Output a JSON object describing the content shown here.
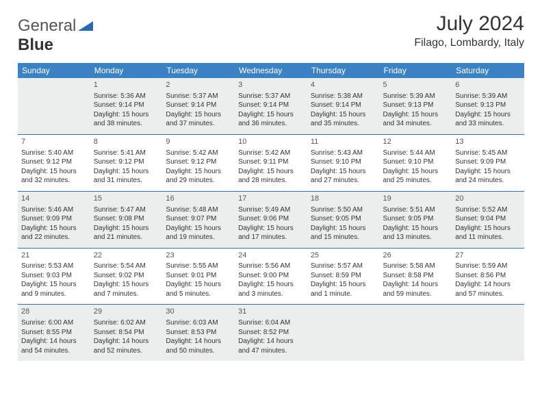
{
  "brand": {
    "part1": "General",
    "part2": "Blue"
  },
  "title": {
    "month": "July 2024",
    "location": "Filago, Lombardy, Italy"
  },
  "colors": {
    "header_bg": "#3b82c4",
    "header_text": "#ffffff",
    "shaded_row": "#eceded",
    "row_separator": "#3b6fa0",
    "logo_shape": "#2a6bb0",
    "text": "#333333"
  },
  "weekdays": [
    "Sunday",
    "Monday",
    "Tuesday",
    "Wednesday",
    "Thursday",
    "Friday",
    "Saturday"
  ],
  "weeks": [
    {
      "shaded": true,
      "days": [
        null,
        {
          "n": "1",
          "sr": "Sunrise: 5:36 AM",
          "ss": "Sunset: 9:14 PM",
          "d1": "Daylight: 15 hours",
          "d2": "and 38 minutes."
        },
        {
          "n": "2",
          "sr": "Sunrise: 5:37 AM",
          "ss": "Sunset: 9:14 PM",
          "d1": "Daylight: 15 hours",
          "d2": "and 37 minutes."
        },
        {
          "n": "3",
          "sr": "Sunrise: 5:37 AM",
          "ss": "Sunset: 9:14 PM",
          "d1": "Daylight: 15 hours",
          "d2": "and 36 minutes."
        },
        {
          "n": "4",
          "sr": "Sunrise: 5:38 AM",
          "ss": "Sunset: 9:14 PM",
          "d1": "Daylight: 15 hours",
          "d2": "and 35 minutes."
        },
        {
          "n": "5",
          "sr": "Sunrise: 5:39 AM",
          "ss": "Sunset: 9:13 PM",
          "d1": "Daylight: 15 hours",
          "d2": "and 34 minutes."
        },
        {
          "n": "6",
          "sr": "Sunrise: 5:39 AM",
          "ss": "Sunset: 9:13 PM",
          "d1": "Daylight: 15 hours",
          "d2": "and 33 minutes."
        }
      ]
    },
    {
      "shaded": false,
      "days": [
        {
          "n": "7",
          "sr": "Sunrise: 5:40 AM",
          "ss": "Sunset: 9:12 PM",
          "d1": "Daylight: 15 hours",
          "d2": "and 32 minutes."
        },
        {
          "n": "8",
          "sr": "Sunrise: 5:41 AM",
          "ss": "Sunset: 9:12 PM",
          "d1": "Daylight: 15 hours",
          "d2": "and 31 minutes."
        },
        {
          "n": "9",
          "sr": "Sunrise: 5:42 AM",
          "ss": "Sunset: 9:12 PM",
          "d1": "Daylight: 15 hours",
          "d2": "and 29 minutes."
        },
        {
          "n": "10",
          "sr": "Sunrise: 5:42 AM",
          "ss": "Sunset: 9:11 PM",
          "d1": "Daylight: 15 hours",
          "d2": "and 28 minutes."
        },
        {
          "n": "11",
          "sr": "Sunrise: 5:43 AM",
          "ss": "Sunset: 9:10 PM",
          "d1": "Daylight: 15 hours",
          "d2": "and 27 minutes."
        },
        {
          "n": "12",
          "sr": "Sunrise: 5:44 AM",
          "ss": "Sunset: 9:10 PM",
          "d1": "Daylight: 15 hours",
          "d2": "and 25 minutes."
        },
        {
          "n": "13",
          "sr": "Sunrise: 5:45 AM",
          "ss": "Sunset: 9:09 PM",
          "d1": "Daylight: 15 hours",
          "d2": "and 24 minutes."
        }
      ]
    },
    {
      "shaded": true,
      "days": [
        {
          "n": "14",
          "sr": "Sunrise: 5:46 AM",
          "ss": "Sunset: 9:09 PM",
          "d1": "Daylight: 15 hours",
          "d2": "and 22 minutes."
        },
        {
          "n": "15",
          "sr": "Sunrise: 5:47 AM",
          "ss": "Sunset: 9:08 PM",
          "d1": "Daylight: 15 hours",
          "d2": "and 21 minutes."
        },
        {
          "n": "16",
          "sr": "Sunrise: 5:48 AM",
          "ss": "Sunset: 9:07 PM",
          "d1": "Daylight: 15 hours",
          "d2": "and 19 minutes."
        },
        {
          "n": "17",
          "sr": "Sunrise: 5:49 AM",
          "ss": "Sunset: 9:06 PM",
          "d1": "Daylight: 15 hours",
          "d2": "and 17 minutes."
        },
        {
          "n": "18",
          "sr": "Sunrise: 5:50 AM",
          "ss": "Sunset: 9:05 PM",
          "d1": "Daylight: 15 hours",
          "d2": "and 15 minutes."
        },
        {
          "n": "19",
          "sr": "Sunrise: 5:51 AM",
          "ss": "Sunset: 9:05 PM",
          "d1": "Daylight: 15 hours",
          "d2": "and 13 minutes."
        },
        {
          "n": "20",
          "sr": "Sunrise: 5:52 AM",
          "ss": "Sunset: 9:04 PM",
          "d1": "Daylight: 15 hours",
          "d2": "and 11 minutes."
        }
      ]
    },
    {
      "shaded": false,
      "days": [
        {
          "n": "21",
          "sr": "Sunrise: 5:53 AM",
          "ss": "Sunset: 9:03 PM",
          "d1": "Daylight: 15 hours",
          "d2": "and 9 minutes."
        },
        {
          "n": "22",
          "sr": "Sunrise: 5:54 AM",
          "ss": "Sunset: 9:02 PM",
          "d1": "Daylight: 15 hours",
          "d2": "and 7 minutes."
        },
        {
          "n": "23",
          "sr": "Sunrise: 5:55 AM",
          "ss": "Sunset: 9:01 PM",
          "d1": "Daylight: 15 hours",
          "d2": "and 5 minutes."
        },
        {
          "n": "24",
          "sr": "Sunrise: 5:56 AM",
          "ss": "Sunset: 9:00 PM",
          "d1": "Daylight: 15 hours",
          "d2": "and 3 minutes."
        },
        {
          "n": "25",
          "sr": "Sunrise: 5:57 AM",
          "ss": "Sunset: 8:59 PM",
          "d1": "Daylight: 15 hours",
          "d2": "and 1 minute."
        },
        {
          "n": "26",
          "sr": "Sunrise: 5:58 AM",
          "ss": "Sunset: 8:58 PM",
          "d1": "Daylight: 14 hours",
          "d2": "and 59 minutes."
        },
        {
          "n": "27",
          "sr": "Sunrise: 5:59 AM",
          "ss": "Sunset: 8:56 PM",
          "d1": "Daylight: 14 hours",
          "d2": "and 57 minutes."
        }
      ]
    },
    {
      "shaded": true,
      "days": [
        {
          "n": "28",
          "sr": "Sunrise: 6:00 AM",
          "ss": "Sunset: 8:55 PM",
          "d1": "Daylight: 14 hours",
          "d2": "and 54 minutes."
        },
        {
          "n": "29",
          "sr": "Sunrise: 6:02 AM",
          "ss": "Sunset: 8:54 PM",
          "d1": "Daylight: 14 hours",
          "d2": "and 52 minutes."
        },
        {
          "n": "30",
          "sr": "Sunrise: 6:03 AM",
          "ss": "Sunset: 8:53 PM",
          "d1": "Daylight: 14 hours",
          "d2": "and 50 minutes."
        },
        {
          "n": "31",
          "sr": "Sunrise: 6:04 AM",
          "ss": "Sunset: 8:52 PM",
          "d1": "Daylight: 14 hours",
          "d2": "and 47 minutes."
        },
        null,
        null,
        null
      ]
    }
  ]
}
